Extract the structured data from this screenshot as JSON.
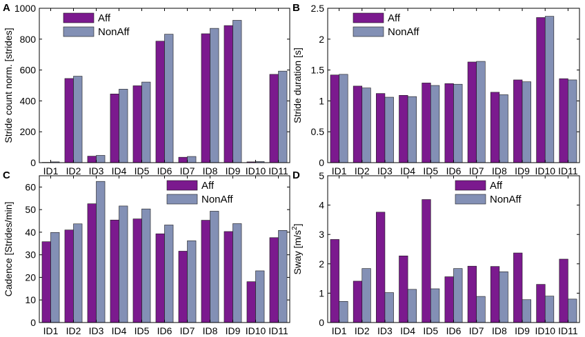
{
  "figure": {
    "colors": {
      "aff": "#7B1A8E",
      "nonaff": "#8390B5",
      "edge": "#1a1a1a"
    }
  },
  "chart_data": [
    {
      "type": "bar",
      "panel_label": "A",
      "title": "",
      "xlabel": "",
      "ylabel": "Stride count norm. [strides]",
      "categories": [
        "ID1",
        "ID2",
        "ID3",
        "ID4",
        "ID5",
        "ID6",
        "ID7",
        "ID8",
        "ID9",
        "ID10",
        "ID11"
      ],
      "series": [
        {
          "name": "Aff",
          "values": [
            2,
            545,
            42,
            445,
            498,
            787,
            35,
            835,
            888,
            5,
            572
          ]
        },
        {
          "name": "NonAff",
          "values": [
            5,
            560,
            47,
            476,
            522,
            832,
            40,
            870,
            922,
            7,
            593
          ]
        }
      ],
      "ylim": [
        0,
        1000
      ],
      "yticks": [
        0,
        200,
        400,
        600,
        800,
        1000
      ],
      "ytick_labels": [
        "0",
        "200",
        "400",
        "600",
        "800",
        "1000"
      ],
      "legend": "top-left"
    },
    {
      "type": "bar",
      "panel_label": "B",
      "title": "",
      "xlabel": "",
      "ylabel": "Stride duration [s]",
      "categories": [
        "ID1",
        "ID2",
        "ID3",
        "ID4",
        "ID5",
        "ID6",
        "ID7",
        "ID8",
        "ID9",
        "ID10",
        "ID11"
      ],
      "series": [
        {
          "name": "Aff",
          "values": [
            1.42,
            1.24,
            1.12,
            1.09,
            1.29,
            1.28,
            1.63,
            1.14,
            1.34,
            2.35,
            1.36
          ]
        },
        {
          "name": "NonAff",
          "values": [
            1.43,
            1.21,
            1.06,
            1.07,
            1.25,
            1.27,
            1.64,
            1.1,
            1.31,
            2.37,
            1.34
          ]
        }
      ],
      "ylim": [
        0,
        2.5
      ],
      "yticks": [
        0,
        0.5,
        1,
        1.5,
        2,
        2.5
      ],
      "ytick_labels": [
        "0",
        "0.5",
        "1",
        "1.5",
        "2",
        "2.5"
      ],
      "legend": "top-left"
    },
    {
      "type": "bar",
      "panel_label": "C",
      "title": "",
      "xlabel": "",
      "ylabel": "Cadence [Strides/min]",
      "categories": [
        "ID1",
        "ID2",
        "ID3",
        "ID4",
        "ID5",
        "ID6",
        "ID7",
        "ID8",
        "ID9",
        "ID10",
        "ID11"
      ],
      "series": [
        {
          "name": "Aff",
          "values": [
            35.8,
            41.0,
            52.6,
            45.4,
            45.9,
            39.3,
            31.6,
            45.3,
            40.3,
            18.1,
            37.6
          ]
        },
        {
          "name": "NonAff",
          "values": [
            39.9,
            43.7,
            62.5,
            51.6,
            50.3,
            43.2,
            36.2,
            49.3,
            43.8,
            22.9,
            40.8
          ]
        }
      ],
      "ylim": [
        0,
        65
      ],
      "yticks": [
        0,
        10,
        20,
        30,
        40,
        50,
        60
      ],
      "ytick_labels": [
        "0",
        "10",
        "20",
        "30",
        "40",
        "50",
        "60"
      ],
      "legend": "top-right"
    },
    {
      "type": "bar",
      "panel_label": "D",
      "title": "",
      "xlabel": "",
      "ylabel_main": "Sway [m/s",
      "ylabel_sup": "2",
      "ylabel_end": "]",
      "categories": [
        "ID1",
        "ID2",
        "ID3",
        "ID4",
        "ID5",
        "ID6",
        "ID7",
        "ID8",
        "ID9",
        "ID10",
        "ID11"
      ],
      "series": [
        {
          "name": "Aff",
          "values": [
            2.83,
            1.41,
            3.76,
            2.27,
            4.19,
            1.56,
            1.92,
            1.91,
            2.37,
            1.3,
            2.16
          ]
        },
        {
          "name": "NonAff",
          "values": [
            0.72,
            1.84,
            1.02,
            1.13,
            1.15,
            1.84,
            0.89,
            1.73,
            0.78,
            0.9,
            0.8
          ]
        }
      ],
      "ylim": [
        0,
        5
      ],
      "yticks": [
        0,
        1,
        2,
        3,
        4,
        5
      ],
      "ytick_labels": [
        "0",
        "1",
        "2",
        "3",
        "4",
        "5"
      ],
      "legend": "top-right"
    }
  ]
}
